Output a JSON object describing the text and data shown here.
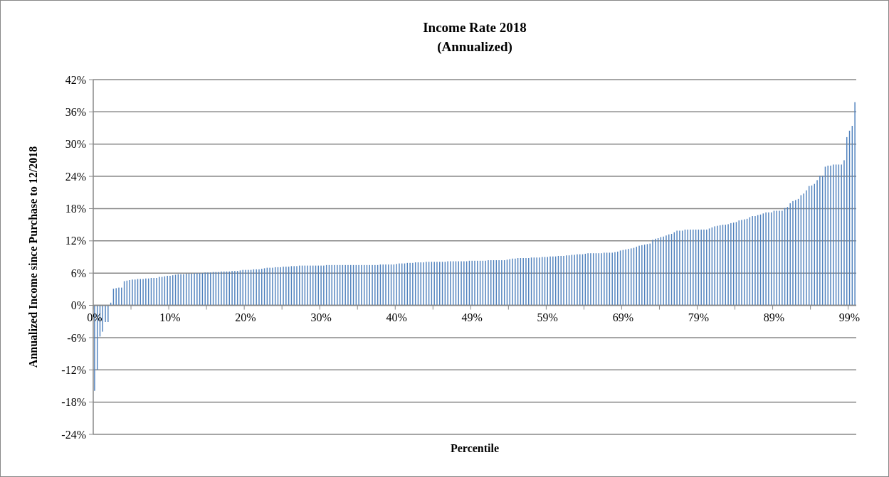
{
  "chart_data": {
    "type": "bar",
    "title": "Income Rate 2018",
    "subtitle": "(Annualized)",
    "xlabel": "Percentile",
    "ylabel": "Annualized Income since Purchase to 12/2018",
    "categories": [
      "0%",
      null,
      null,
      null,
      null,
      null,
      null,
      null,
      null,
      null,
      null,
      null,
      null,
      null,
      null,
      null,
      null,
      null,
      null,
      null,
      null,
      null,
      null,
      null,
      null,
      null,
      null,
      null,
      "10%",
      null,
      null,
      null,
      null,
      null,
      null,
      null,
      null,
      null,
      null,
      null,
      null,
      null,
      null,
      null,
      null,
      null,
      null,
      null,
      null,
      null,
      null,
      null,
      null,
      null,
      null,
      null,
      "20%",
      null,
      null,
      null,
      null,
      null,
      null,
      null,
      null,
      null,
      null,
      null,
      null,
      null,
      null,
      null,
      null,
      null,
      null,
      null,
      null,
      null,
      null,
      null,
      null,
      null,
      null,
      null,
      "30%",
      null,
      null,
      null,
      null,
      null,
      null,
      null,
      null,
      null,
      null,
      null,
      null,
      null,
      null,
      null,
      null,
      null,
      null,
      null,
      null,
      null,
      null,
      null,
      null,
      null,
      null,
      null,
      "40%",
      null,
      null,
      null,
      null,
      null,
      null,
      null,
      null,
      null,
      null,
      null,
      null,
      null,
      null,
      null,
      null,
      null,
      null,
      null,
      null,
      null,
      null,
      null,
      null,
      null,
      null,
      null,
      "49%",
      null,
      null,
      null,
      null,
      null,
      null,
      null,
      null,
      null,
      null,
      null,
      null,
      null,
      null,
      null,
      null,
      null,
      null,
      null,
      null,
      null,
      null,
      null,
      null,
      null,
      null,
      null,
      "59%",
      null,
      null,
      null,
      null,
      null,
      null,
      null,
      null,
      null,
      null,
      null,
      null,
      null,
      null,
      null,
      null,
      null,
      null,
      null,
      null,
      null,
      null,
      null,
      null,
      null,
      null,
      null,
      "69%",
      null,
      null,
      null,
      null,
      null,
      null,
      null,
      null,
      null,
      null,
      null,
      null,
      null,
      null,
      null,
      null,
      null,
      null,
      null,
      null,
      null,
      null,
      null,
      null,
      null,
      null,
      null,
      "79%",
      null,
      null,
      null,
      null,
      null,
      null,
      null,
      null,
      null,
      null,
      null,
      null,
      null,
      null,
      null,
      null,
      null,
      null,
      null,
      null,
      null,
      null,
      null,
      null,
      null,
      null,
      null,
      "89%",
      null,
      null,
      null,
      null,
      null,
      null,
      null,
      null,
      null,
      null,
      null,
      null,
      null,
      null,
      null,
      null,
      null,
      null,
      null,
      null,
      null,
      null,
      null,
      null,
      null,
      null,
      null,
      "99%",
      null,
      null
    ],
    "values": [
      -15.9,
      -12,
      -5.8,
      -4.9,
      -3.1,
      -3.1,
      0.5,
      3.1,
      3.2,
      3.3,
      3.3,
      4.5,
      4.6,
      4.7,
      4.8,
      4.8,
      4.9,
      4.9,
      4.9,
      5,
      5,
      5.1,
      5.1,
      5.1,
      5.3,
      5.3,
      5.4,
      5.5,
      5.5,
      5.6,
      5.7,
      5.8,
      5.8,
      5.8,
      5.9,
      5.9,
      5.9,
      6,
      6,
      6,
      6,
      6.1,
      6.1,
      6.1,
      6.2,
      6.2,
      6.2,
      6.3,
      6.3,
      6.3,
      6.3,
      6.4,
      6.4,
      6.4,
      6.5,
      6.6,
      6.6,
      6.6,
      6.6,
      6.7,
      6.7,
      6.7,
      6.8,
      6.9,
      7,
      7,
      7,
      7.1,
      7.1,
      7.1,
      7.2,
      7.2,
      7.2,
      7.3,
      7.3,
      7.3,
      7.4,
      7.4,
      7.4,
      7.4,
      7.4,
      7.4,
      7.4,
      7.4,
      7.4,
      7.4,
      7.5,
      7.5,
      7.5,
      7.5,
      7.5,
      7.5,
      7.5,
      7.5,
      7.5,
      7.5,
      7.5,
      7.5,
      7.5,
      7.5,
      7.5,
      7.5,
      7.5,
      7.5,
      7.5,
      7.5,
      7.6,
      7.6,
      7.6,
      7.6,
      7.6,
      7.6,
      7.7,
      7.8,
      7.8,
      7.8,
      7.9,
      7.9,
      7.9,
      8,
      8,
      8,
      8,
      8.1,
      8.1,
      8.1,
      8.1,
      8.1,
      8.1,
      8.1,
      8.1,
      8.2,
      8.2,
      8.2,
      8.2,
      8.2,
      8.2,
      8.2,
      8.2,
      8.3,
      8.3,
      8.3,
      8.3,
      8.3,
      8.3,
      8.3,
      8.4,
      8.4,
      8.4,
      8.4,
      8.4,
      8.4,
      8.4,
      8.5,
      8.6,
      8.7,
      8.7,
      8.8,
      8.8,
      8.8,
      8.8,
      8.8,
      8.9,
      8.9,
      8.9,
      8.9,
      9,
      9,
      9,
      9.1,
      9.1,
      9.1,
      9.2,
      9.2,
      9.2,
      9.3,
      9.3,
      9.4,
      9.4,
      9.5,
      9.5,
      9.5,
      9.6,
      9.7,
      9.7,
      9.7,
      9.7,
      9.7,
      9.7,
      9.8,
      9.8,
      9.8,
      9.8,
      9.9,
      10,
      10.2,
      10.3,
      10.4,
      10.5,
      10.6,
      10.7,
      10.9,
      11.1,
      11.2,
      11.3,
      11.4,
      11.5,
      12.2,
      12.4,
      12.5,
      12.7,
      12.8,
      13,
      13.2,
      13.3,
      13.6,
      13.9,
      13.9,
      13.9,
      14.1,
      14.1,
      14.1,
      14.1,
      14.1,
      14.1,
      14.1,
      14.1,
      14.1,
      14.3,
      14.5,
      14.7,
      14.8,
      14.9,
      15,
      15,
      15.1,
      15.3,
      15.4,
      15.5,
      15.8,
      15.9,
      16,
      16.1,
      16.4,
      16.6,
      16.6,
      16.8,
      16.9,
      17.1,
      17.3,
      17.3,
      17.3,
      17.6,
      17.6,
      17.6,
      17.6,
      18.1,
      18.3,
      19,
      19.4,
      19.6,
      19.8,
      20.5,
      20.8,
      21.4,
      22.2,
      22.3,
      22.6,
      23.3,
      24.1,
      24.1,
      25.8,
      26,
      26,
      26.2,
      26.2,
      26.2,
      26.2,
      27,
      31.3,
      32.5,
      33.4,
      37.8
    ],
    "color": "#4f81bd",
    "ylim": [
      -24,
      42
    ],
    "yticks": [
      {
        "value": -24,
        "label": "-24%"
      },
      {
        "value": -18,
        "label": "-18%"
      },
      {
        "value": -12,
        "label": "-12%"
      },
      {
        "value": -6,
        "label": "-6%"
      },
      {
        "value": 0,
        "label": "0%"
      },
      {
        "value": 6,
        "label": "6%"
      },
      {
        "value": 12,
        "label": "12%"
      },
      {
        "value": 18,
        "label": "18%"
      },
      {
        "value": 24,
        "label": "24%"
      },
      {
        "value": 30,
        "label": "30%"
      },
      {
        "value": 36,
        "label": "36%"
      },
      {
        "value": 42,
        "label": "42%"
      }
    ],
    "grid": "y"
  }
}
